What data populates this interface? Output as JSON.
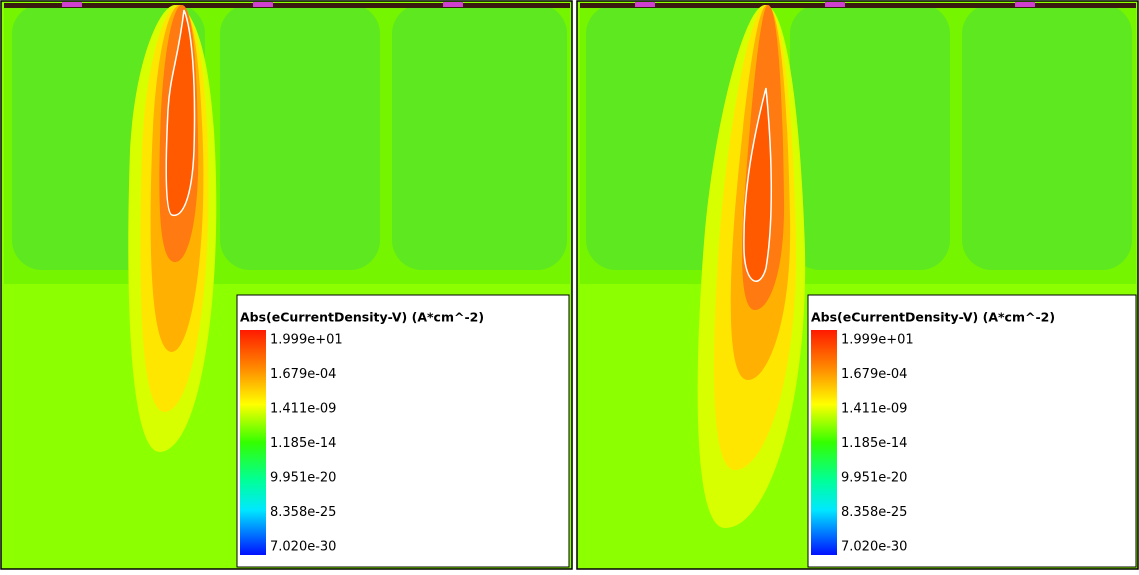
{
  "panels": [
    {
      "legend": {
        "title": "Abs(eCurrentDensity-V) (A*cm^-2)",
        "labels": [
          "1.999e+01",
          "1.679e-04",
          "1.411e-09",
          "1.185e-14",
          "9.951e-20",
          "8.358e-25",
          "7.020e-30"
        ]
      }
    },
    {
      "legend": {
        "title": "Abs(eCurrentDensity-V) (A*cm^-2)",
        "labels": [
          "1.999e+01",
          "1.679e-04",
          "1.411e-09",
          "1.185e-14",
          "9.951e-20",
          "8.358e-25",
          "7.020e-30"
        ]
      }
    }
  ]
}
